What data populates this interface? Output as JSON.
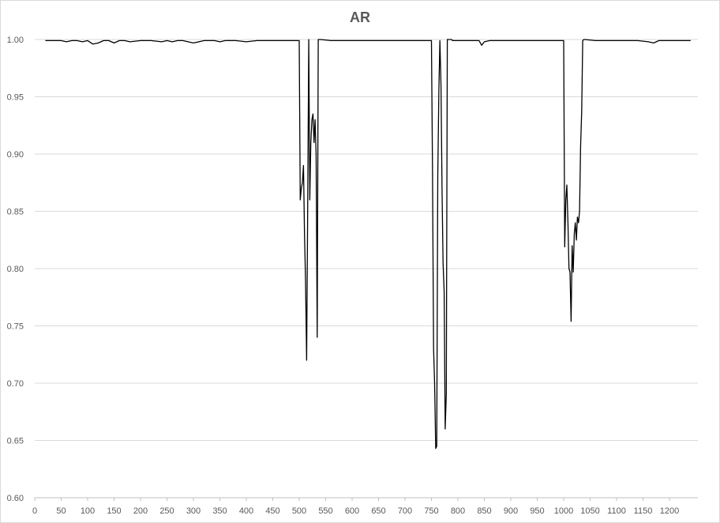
{
  "chart_data": {
    "type": "line",
    "title": "AR",
    "xlabel": "",
    "ylabel": "",
    "xlim": [
      0,
      1240
    ],
    "ylim": [
      0.6,
      1.0
    ],
    "grid": true,
    "legend": "none",
    "x_ticks": [
      "0",
      "50",
      "100",
      "150",
      "200",
      "250",
      "300",
      "350",
      "400",
      "450",
      "500",
      "550",
      "600",
      "650",
      "700",
      "750",
      "800",
      "850",
      "900",
      "950",
      "1000",
      "1050",
      "1100",
      "1150",
      "1200"
    ],
    "y_ticks": [
      "0.60",
      "0.65",
      "0.70",
      "0.75",
      "0.80",
      "0.85",
      "0.90",
      "0.95",
      "1.00"
    ],
    "line_color": "#000000",
    "grid_color": "#d9d9d9",
    "series": [
      {
        "x": [
          20,
          50,
          60,
          70,
          80,
          90,
          100,
          110,
          120,
          130,
          140,
          150,
          160,
          170,
          180,
          200,
          220,
          240,
          250,
          260,
          270,
          280,
          300,
          320,
          340,
          350,
          360,
          380,
          400,
          420,
          440,
          460,
          480,
          499,
          500,
          502,
          504,
          506,
          508,
          510,
          512,
          514,
          516,
          518,
          520,
          522,
          524,
          526,
          528,
          530,
          532,
          534,
          536,
          538,
          540,
          560,
          580,
          600,
          620,
          640,
          660,
          680,
          700,
          720,
          740,
          750,
          752,
          754,
          756,
          758,
          760,
          762,
          764,
          766,
          768,
          770,
          772,
          774,
          776,
          778,
          780,
          782,
          784,
          786,
          788,
          790,
          800,
          820,
          840,
          845,
          850,
          860,
          880,
          900,
          920,
          940,
          960,
          980,
          990,
          999,
          1000,
          1002,
          1004,
          1006,
          1008,
          1010,
          1012,
          1014,
          1016,
          1018,
          1020,
          1022,
          1024,
          1026,
          1028,
          1030,
          1032,
          1034,
          1036,
          1038,
          1040,
          1060,
          1080,
          1100,
          1120,
          1140,
          1160,
          1170,
          1180,
          1200,
          1220,
          1240
        ],
        "y": [
          0.999,
          0.999,
          0.998,
          0.999,
          0.999,
          0.998,
          0.999,
          0.996,
          0.997,
          0.999,
          0.999,
          0.997,
          0.999,
          0.999,
          0.998,
          0.999,
          0.999,
          0.998,
          0.999,
          0.998,
          0.999,
          0.999,
          0.997,
          0.999,
          0.999,
          0.998,
          0.999,
          0.999,
          0.998,
          0.999,
          0.999,
          0.999,
          0.999,
          0.999,
          0.999,
          0.86,
          0.87,
          0.875,
          0.89,
          0.83,
          0.79,
          0.72,
          0.85,
          1.0,
          0.86,
          0.91,
          0.93,
          0.935,
          0.91,
          0.93,
          0.9,
          0.74,
          1.0,
          1.0,
          1.0,
          0.999,
          0.999,
          0.999,
          0.999,
          0.999,
          0.999,
          0.999,
          0.999,
          0.999,
          0.999,
          0.999,
          0.889,
          0.73,
          0.7,
          0.643,
          0.645,
          0.88,
          0.955,
          0.999,
          0.96,
          0.87,
          0.805,
          0.78,
          0.66,
          0.69,
          1.0,
          1.0,
          1.0,
          1.0,
          1.0,
          0.999,
          0.999,
          0.999,
          0.999,
          0.995,
          0.998,
          0.999,
          0.999,
          0.999,
          0.999,
          0.999,
          0.999,
          0.999,
          0.999,
          0.999,
          0.999,
          0.819,
          0.86,
          0.873,
          0.84,
          0.8,
          0.797,
          0.754,
          0.82,
          0.797,
          0.83,
          0.84,
          0.825,
          0.845,
          0.84,
          0.85,
          0.906,
          0.937,
          0.999,
          1.0,
          1.0,
          0.999,
          0.999,
          0.999,
          0.999,
          0.999,
          0.998,
          0.997,
          0.999,
          0.999,
          0.999,
          0.999
        ]
      }
    ]
  }
}
